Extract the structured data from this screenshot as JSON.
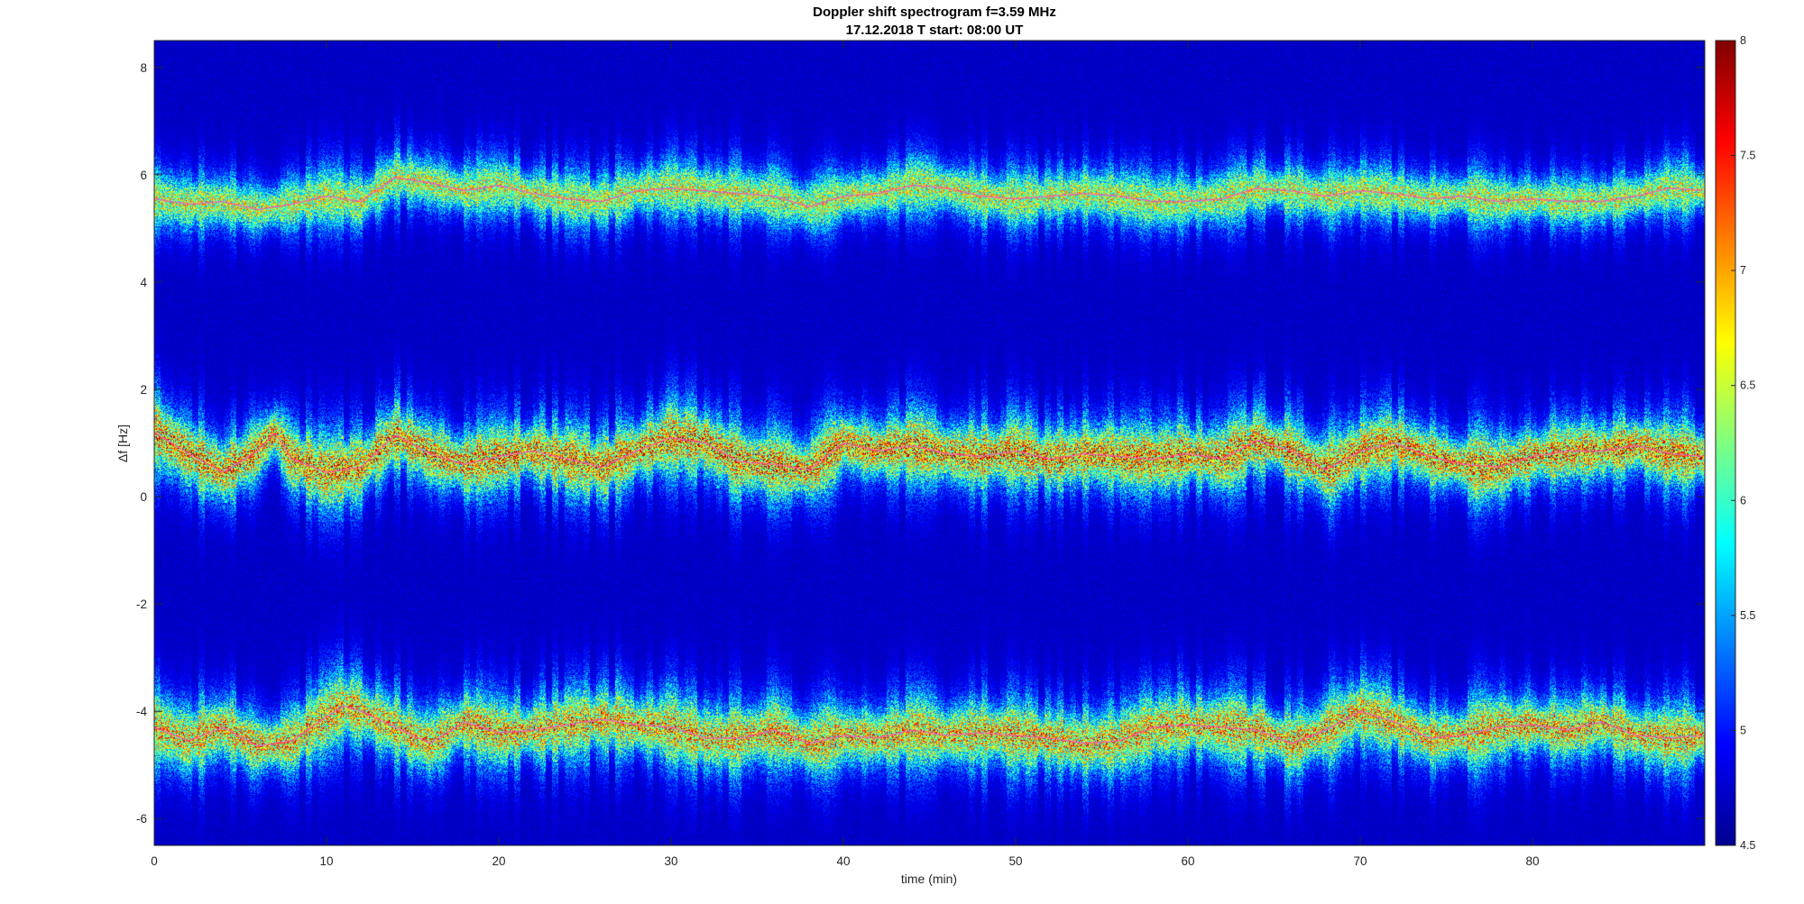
{
  "chart_data": {
    "type": "heatmap",
    "title": "Doppler shift spectrogram f=3.59 MHz",
    "subtitle": "17.12.2018   T start: 08:00 UT",
    "xlabel": "time (min)",
    "ylabel": "Δf [Hz]",
    "xlim": [
      0,
      90
    ],
    "ylim": [
      -6.5,
      8.5
    ],
    "xticks": [
      "0",
      "10",
      "20",
      "30",
      "40",
      "50",
      "60",
      "70",
      "80"
    ],
    "xtick_values": [
      0,
      10,
      20,
      30,
      40,
      50,
      60,
      70,
      80
    ],
    "yticks": [
      "-6",
      "-4",
      "-2",
      "0",
      "2",
      "4",
      "6",
      "8"
    ],
    "ytick_values": [
      -6,
      -4,
      -2,
      0,
      2,
      4,
      6,
      8
    ],
    "colormap": "jet",
    "colorbar": {
      "range": [
        4.5,
        8
      ],
      "ticks": [
        "4.5",
        "5",
        "5.5",
        "6",
        "6.5",
        "7",
        "7.5",
        "8"
      ],
      "tick_values": [
        4.5,
        5,
        5.5,
        6,
        6.5,
        7,
        7.5,
        8
      ],
      "position": "right"
    },
    "background_value": 4.7,
    "bands": [
      {
        "center": [
          [
            0,
            5.55
          ],
          [
            2,
            5.45
          ],
          [
            4,
            5.5
          ],
          [
            6,
            5.35
          ],
          [
            8,
            5.45
          ],
          [
            10,
            5.6
          ],
          [
            12,
            5.5
          ],
          [
            14,
            5.95
          ],
          [
            16,
            5.85
          ],
          [
            18,
            5.7
          ],
          [
            20,
            5.8
          ],
          [
            22,
            5.65
          ],
          [
            24,
            5.55
          ],
          [
            26,
            5.5
          ],
          [
            28,
            5.7
          ],
          [
            30,
            5.75
          ],
          [
            32,
            5.7
          ],
          [
            34,
            5.65
          ],
          [
            36,
            5.6
          ],
          [
            38,
            5.4
          ],
          [
            40,
            5.6
          ],
          [
            42,
            5.65
          ],
          [
            44,
            5.8
          ],
          [
            46,
            5.75
          ],
          [
            48,
            5.6
          ],
          [
            50,
            5.55
          ],
          [
            52,
            5.6
          ],
          [
            54,
            5.65
          ],
          [
            56,
            5.6
          ],
          [
            58,
            5.5
          ],
          [
            60,
            5.5
          ],
          [
            62,
            5.55
          ],
          [
            64,
            5.75
          ],
          [
            66,
            5.7
          ],
          [
            68,
            5.6
          ],
          [
            70,
            5.7
          ],
          [
            72,
            5.65
          ],
          [
            74,
            5.55
          ],
          [
            76,
            5.6
          ],
          [
            78,
            5.5
          ],
          [
            80,
            5.55
          ],
          [
            82,
            5.5
          ],
          [
            84,
            5.5
          ],
          [
            86,
            5.6
          ],
          [
            88,
            5.75
          ],
          [
            90,
            5.7
          ]
        ],
        "spread_hz": 0.45,
        "peak_value": 7.0
      },
      {
        "center": [
          [
            0,
            1.2
          ],
          [
            2,
            0.8
          ],
          [
            4,
            0.45
          ],
          [
            6,
            0.85
          ],
          [
            7,
            1.2
          ],
          [
            8,
            0.7
          ],
          [
            10,
            0.45
          ],
          [
            12,
            0.55
          ],
          [
            14,
            1.15
          ],
          [
            16,
            0.8
          ],
          [
            18,
            0.6
          ],
          [
            20,
            0.75
          ],
          [
            22,
            0.85
          ],
          [
            24,
            0.7
          ],
          [
            26,
            0.55
          ],
          [
            28,
            0.85
          ],
          [
            30,
            1.1
          ],
          [
            32,
            1.0
          ],
          [
            34,
            0.65
          ],
          [
            36,
            0.6
          ],
          [
            38,
            0.5
          ],
          [
            40,
            1.0
          ],
          [
            42,
            0.85
          ],
          [
            44,
            0.95
          ],
          [
            46,
            0.8
          ],
          [
            48,
            0.75
          ],
          [
            50,
            0.85
          ],
          [
            52,
            0.7
          ],
          [
            54,
            0.8
          ],
          [
            56,
            0.75
          ],
          [
            58,
            0.7
          ],
          [
            60,
            0.8
          ],
          [
            62,
            0.7
          ],
          [
            64,
            1.05
          ],
          [
            66,
            0.85
          ],
          [
            68,
            0.5
          ],
          [
            70,
            0.85
          ],
          [
            72,
            1.0
          ],
          [
            74,
            0.75
          ],
          [
            76,
            0.6
          ],
          [
            78,
            0.55
          ],
          [
            80,
            0.75
          ],
          [
            82,
            0.85
          ],
          [
            84,
            0.85
          ],
          [
            86,
            0.95
          ],
          [
            88,
            0.8
          ],
          [
            90,
            0.75
          ]
        ],
        "spread_hz": 0.55,
        "peak_value": 7.6
      },
      {
        "center": [
          [
            0,
            -4.3
          ],
          [
            2,
            -4.55
          ],
          [
            4,
            -4.3
          ],
          [
            6,
            -4.65
          ],
          [
            8,
            -4.55
          ],
          [
            10,
            -4.1
          ],
          [
            11,
            -3.9
          ],
          [
            12,
            -4.0
          ],
          [
            14,
            -4.3
          ],
          [
            16,
            -4.6
          ],
          [
            18,
            -4.2
          ],
          [
            20,
            -4.4
          ],
          [
            22,
            -4.35
          ],
          [
            24,
            -4.25
          ],
          [
            26,
            -4.15
          ],
          [
            28,
            -4.25
          ],
          [
            30,
            -4.3
          ],
          [
            32,
            -4.5
          ],
          [
            34,
            -4.5
          ],
          [
            36,
            -4.35
          ],
          [
            38,
            -4.6
          ],
          [
            40,
            -4.45
          ],
          [
            42,
            -4.5
          ],
          [
            44,
            -4.35
          ],
          [
            46,
            -4.45
          ],
          [
            48,
            -4.4
          ],
          [
            50,
            -4.45
          ],
          [
            52,
            -4.5
          ],
          [
            54,
            -4.6
          ],
          [
            56,
            -4.55
          ],
          [
            58,
            -4.3
          ],
          [
            60,
            -4.25
          ],
          [
            62,
            -4.3
          ],
          [
            64,
            -4.35
          ],
          [
            66,
            -4.6
          ],
          [
            68,
            -4.35
          ],
          [
            70,
            -4.0
          ],
          [
            72,
            -4.2
          ],
          [
            74,
            -4.5
          ],
          [
            76,
            -4.45
          ],
          [
            78,
            -4.3
          ],
          [
            80,
            -4.25
          ],
          [
            82,
            -4.35
          ],
          [
            84,
            -4.2
          ],
          [
            86,
            -4.45
          ],
          [
            88,
            -4.5
          ],
          [
            90,
            -4.45
          ]
        ],
        "spread_hz": 0.55,
        "peak_value": 7.4
      }
    ]
  }
}
